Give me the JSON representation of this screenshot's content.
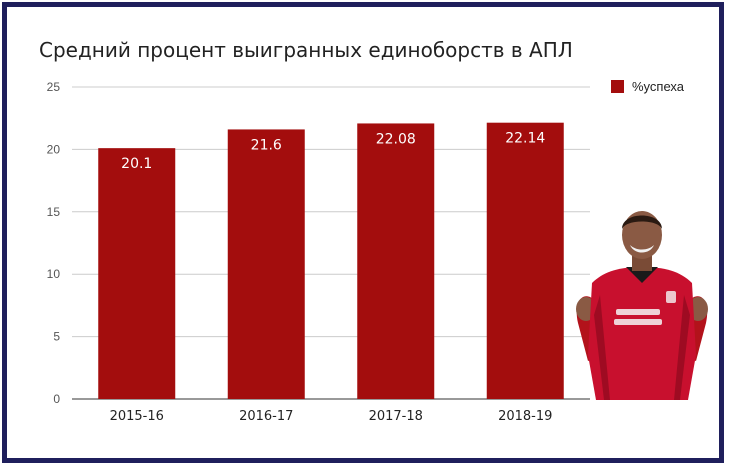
{
  "chart_data": {
    "type": "bar",
    "title": "Средний процент выигранных единоборств в АПЛ",
    "categories": [
      "2015-16",
      "2016-17",
      "2017-18",
      "2018-19"
    ],
    "series": [
      {
        "name": "%успеха",
        "values": [
          20.1,
          21.6,
          22.08,
          22.14
        ]
      }
    ],
    "data_labels": [
      "20.1",
      "21.6",
      "22.08",
      "22.14"
    ],
    "ylim": [
      0,
      25
    ],
    "yticks": [
      0,
      5,
      10,
      15,
      20,
      25
    ],
    "grid": true,
    "legend_position": "right",
    "bar_color": "#a30d0d",
    "label_color": "#ffffff"
  },
  "colors": {
    "frame": "#1f1f5c",
    "grid": "#cccccc",
    "axis_text": "#555555"
  },
  "images": {
    "player_photo": "footballer-photo"
  }
}
